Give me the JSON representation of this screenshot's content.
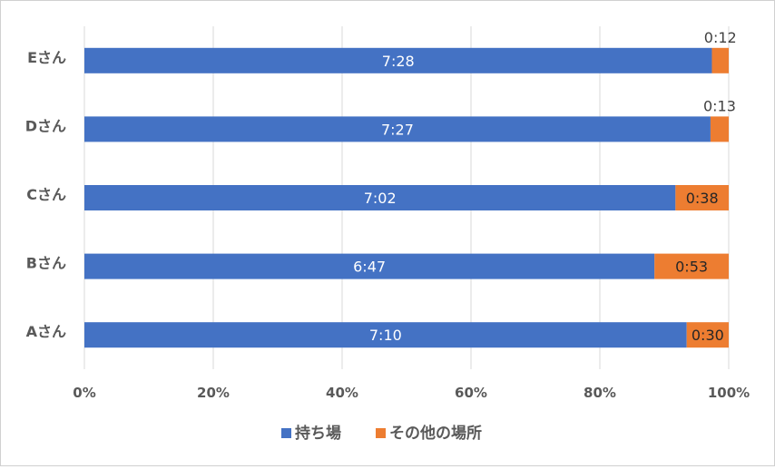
{
  "colors": {
    "series1": "#4472C4",
    "series2": "#ED7D31",
    "gridline": "#D9D9D9",
    "text": "#595959"
  },
  "chart_data": {
    "type": "bar",
    "orientation": "horizontal",
    "stacked": "percent",
    "categories": [
      "Aさん",
      "Bさん",
      "Cさん",
      "Dさん",
      "Eさん"
    ],
    "series": [
      {
        "name": "持ち場",
        "values": [
          430,
          407,
          422,
          447,
          448
        ],
        "labels": [
          "7:10",
          "6:47",
          "7:02",
          "7:27",
          "7:28"
        ]
      },
      {
        "name": "その他の場所",
        "values": [
          30,
          53,
          38,
          13,
          12
        ],
        "labels": [
          "0:30",
          "0:53",
          "0:38",
          "0:13",
          "0:12"
        ]
      }
    ],
    "x_ticks": [
      "0%",
      "20%",
      "40%",
      "60%",
      "80%",
      "100%"
    ],
    "xlim": [
      0,
      1
    ],
    "grid": "vertical",
    "legend": "bottom",
    "title": "",
    "xlabel": "",
    "ylabel": ""
  }
}
